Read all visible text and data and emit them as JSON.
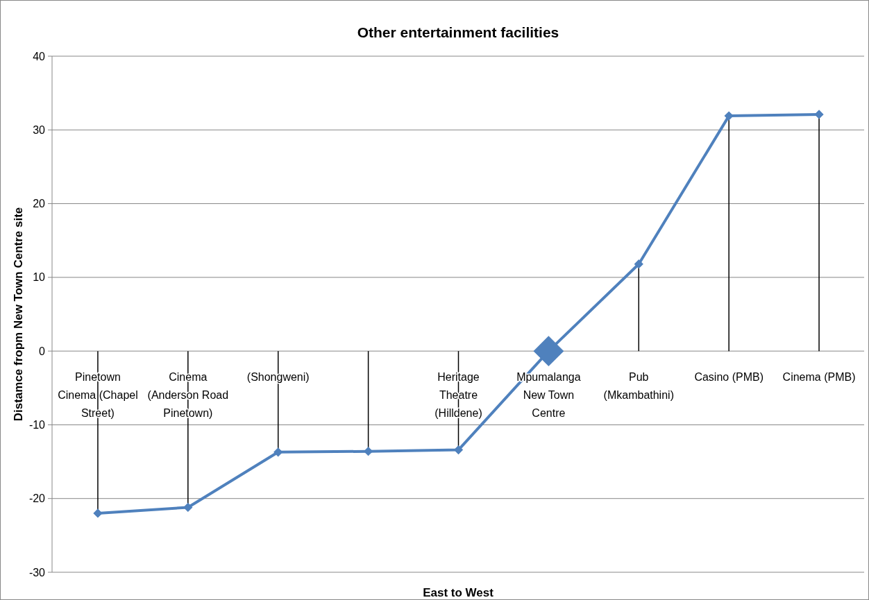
{
  "chart_data": {
    "type": "line",
    "title": "Other entertainment facilities",
    "xlabel": "East to West",
    "ylabel": "Distamce fropm New Town Centre site",
    "categories": [
      "Pinetown Cinema (Chapel Street)",
      "Cinema (Anderson Road Pinetown)",
      "(Shongweni)",
      null,
      "Heritage Theatre (Hilldene)",
      "Mpumalanga New Town Centre",
      "Pub (Mkambathini)",
      "Casino (PMB)",
      "Cinema (PMB)"
    ],
    "series": [
      {
        "color": "#4f81bd",
        "values": [
          -22,
          -21.2,
          -13.7,
          -13.6,
          -13.4,
          0,
          11.8,
          31.9,
          32.1
        ],
        "errors": [
          [
            -22,
            0
          ],
          [
            -21.2,
            0
          ],
          [
            -13.7,
            0
          ],
          [
            -13.6,
            0
          ],
          [
            -13.4,
            0
          ],
          null,
          [
            0,
            11.8
          ],
          [
            0,
            31.9
          ],
          [
            0,
            32.1
          ]
        ]
      },
      {
        "type": "scatter",
        "color": "#4f81bd",
        "values": [
          null,
          null,
          null,
          null,
          null,
          0,
          null,
          null,
          null
        ]
      }
    ],
    "ylim": [
      -30,
      40
    ],
    "yticks": [
      -30,
      -20,
      -10,
      0,
      10,
      20,
      30,
      40
    ],
    "grid": "y",
    "marker": "diamond"
  }
}
